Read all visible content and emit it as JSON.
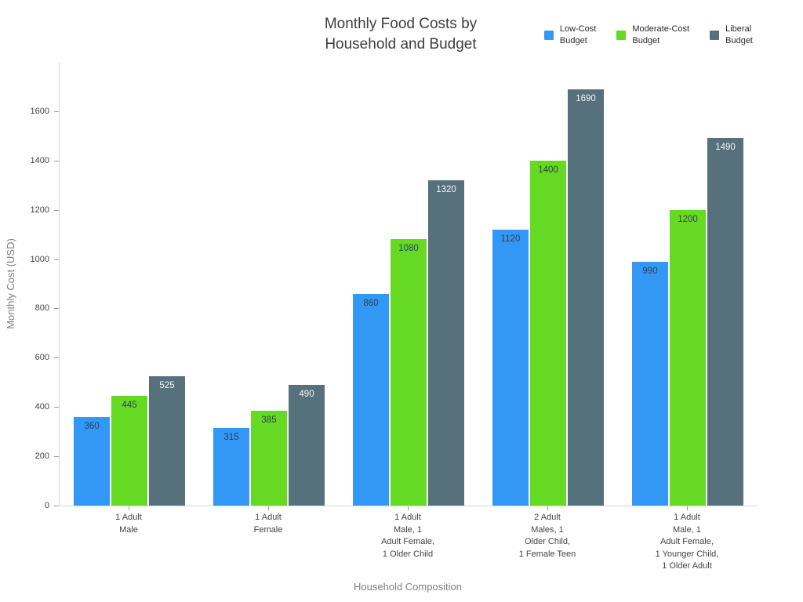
{
  "header": {
    "title": "Monthly Food Costs by\nHousehold and Budget"
  },
  "legend": {
    "items": [
      {
        "label": "Low-Cost\nBudget",
        "color": "#3398F5"
      },
      {
        "label": "Moderate-Cost\nBudget",
        "color": "#66D923"
      },
      {
        "label": "Liberal\nBudget",
        "color": "#56707C"
      }
    ]
  },
  "axes": {
    "x_title": "Household Composition",
    "y_title": "Monthly Cost (USD)"
  },
  "chart_data": {
    "type": "bar",
    "title": "Monthly Food Costs by Household and Budget",
    "xlabel": "Household Composition",
    "ylabel": "Monthly Cost (USD)",
    "categories": [
      "1 Adult\nMale",
      "1 Adult\nFemale",
      "1 Adult\nMale, 1\nAdult Female,\n1 Older Child",
      "2 Adult\nMales, 1\nOlder Child,\n1 Female Teen",
      "1 Adult\nMale, 1\nAdult Female,\n1 Younger Child,\n1 Older Adult"
    ],
    "series": [
      {
        "name": "Low-Cost Budget",
        "color": "#3398F5",
        "label_color": "#2e4157",
        "values": [
          360,
          315,
          860,
          1120,
          990
        ]
      },
      {
        "name": "Moderate-Cost Budget",
        "color": "#66D923",
        "label_color": "#2e4157",
        "values": [
          445,
          385,
          1080,
          1400,
          1200
        ]
      },
      {
        "name": "Liberal Budget",
        "color": "#56707C",
        "label_color": "#f4f7f9",
        "values": [
          525,
          490,
          1320,
          1690,
          1490
        ]
      }
    ],
    "yticks": [
      0,
      200,
      400,
      600,
      800,
      1000,
      1200,
      1400,
      1600
    ],
    "ylim": [
      0,
      1800
    ],
    "grid": false,
    "bar_value_labels": "inside-top",
    "legend_position": "top-right",
    "background": "#ffffff"
  }
}
